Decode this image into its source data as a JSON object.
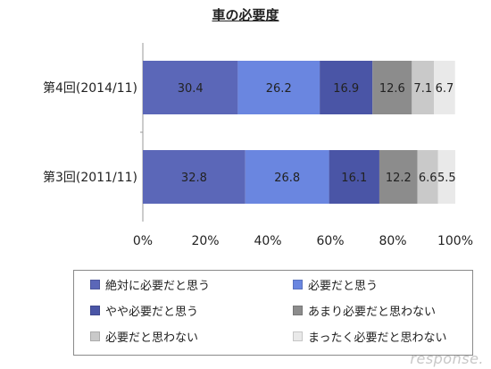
{
  "chart_data": {
    "type": "bar",
    "orientation": "horizontal",
    "stacked": true,
    "title": "車の必要度",
    "categories": [
      "第4回(2014/11)",
      "第3回(2011/11)"
    ],
    "series": [
      {
        "name": "絶対に必要だと思う",
        "values": [
          30.4,
          32.8
        ],
        "color": "#5b67b8"
      },
      {
        "name": "必要だと思う",
        "values": [
          26.2,
          26.8
        ],
        "color": "#6a86e0"
      },
      {
        "name": "やや必要だと思う",
        "values": [
          16.9,
          16.1
        ],
        "color": "#4a55a6"
      },
      {
        "name": "あまり必要だと思わない",
        "values": [
          12.6,
          12.2
        ],
        "color": "#8c8c8c"
      },
      {
        "name": "必要だと思わない",
        "values": [
          7.1,
          6.6
        ],
        "color": "#c9c9c9"
      },
      {
        "name": "まったく必要だと思わない",
        "values": [
          6.7,
          5.5
        ],
        "color": "#e9e9e9"
      }
    ],
    "data_labels": [
      [
        "30.4",
        "26.2",
        "16.9",
        "12.6",
        "7.1",
        "6.7"
      ],
      [
        "32.8",
        "26.8",
        "16.1",
        "12.2",
        "6.6",
        "5.5"
      ]
    ],
    "xlim": [
      0,
      100
    ],
    "x_ticks": [
      "0%",
      "20%",
      "40%",
      "60%",
      "80%",
      "100%"
    ],
    "legend_position": "bottom",
    "grid": false
  },
  "watermark": "response."
}
